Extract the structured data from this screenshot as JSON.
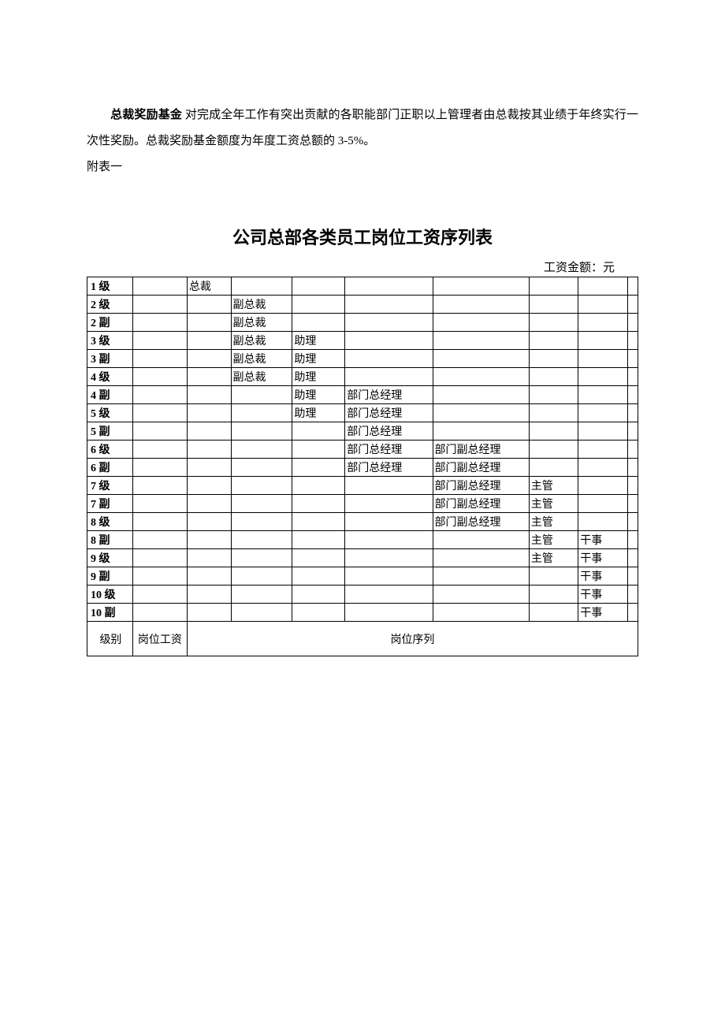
{
  "intro": {
    "bold_lead": "总裁奖励基金",
    "text_rest": " 对完成全年工作有突出贡献的各职能部门正职以上管理者由总裁按其业绩于年终实行一次性奖励。总裁奖励基金额度为年度工资总额的 3-5%。"
  },
  "appendix_label": "附表一",
  "title": "公司总部各类员工岗位工资序列表",
  "unit_label": "工资金额：元",
  "positions": {
    "president": "总裁",
    "vp": "副总裁",
    "assistant": "助理",
    "dept_gm": "部门总经理",
    "dept_dgm": "部门副总经理",
    "supervisor": "主管",
    "officer": "干事"
  },
  "footer": {
    "level": "级别",
    "salary": "岗位工资",
    "sequence": "岗位序列"
  },
  "table": {
    "rows": [
      {
        "level": "1 级",
        "c2": "president",
        "c3": "",
        "c4": "",
        "c5": "",
        "c6": "",
        "c7": "",
        "c8": ""
      },
      {
        "level": "2 级",
        "c2": "",
        "c3": "vp",
        "c4": "",
        "c5": "",
        "c6": "",
        "c7": "",
        "c8": ""
      },
      {
        "level": "2 副",
        "c2": "",
        "c3": "vp",
        "c4": "",
        "c5": "",
        "c6": "",
        "c7": "",
        "c8": ""
      },
      {
        "level": "3 级",
        "c2": "",
        "c3": "vp",
        "c4": "assistant",
        "c5": "",
        "c6": "",
        "c7": "",
        "c8": ""
      },
      {
        "level": "3 副",
        "c2": "",
        "c3": "vp",
        "c4": "assistant",
        "c5": "",
        "c6": "",
        "c7": "",
        "c8": ""
      },
      {
        "level": "4 级",
        "c2": "",
        "c3": "vp",
        "c4": "assistant",
        "c5": "",
        "c6": "",
        "c7": "",
        "c8": ""
      },
      {
        "level": "4 副",
        "c2": "",
        "c3": "",
        "c4": "assistant",
        "c5": "dept_gm",
        "c6": "",
        "c7": "",
        "c8": ""
      },
      {
        "level": "5 级",
        "c2": "",
        "c3": "",
        "c4": "assistant",
        "c5": "dept_gm",
        "c6": "",
        "c7": "",
        "c8": ""
      },
      {
        "level": "5 副",
        "c2": "",
        "c3": "",
        "c4": "",
        "c5": "dept_gm",
        "c6": "",
        "c7": "",
        "c8": ""
      },
      {
        "level": "6 级",
        "c2": "",
        "c3": "",
        "c4": "",
        "c5": "dept_gm",
        "c6": "dept_dgm",
        "c7": "",
        "c8": ""
      },
      {
        "level": "6 副",
        "c2": "",
        "c3": "",
        "c4": "",
        "c5": "dept_gm",
        "c6": "dept_dgm",
        "c7": "",
        "c8": ""
      },
      {
        "level": "7 级",
        "c2": "",
        "c3": "",
        "c4": "",
        "c5": "",
        "c6": "dept_dgm",
        "c7": "supervisor",
        "c8": ""
      },
      {
        "level": "7 副",
        "c2": "",
        "c3": "",
        "c4": "",
        "c5": "",
        "c6": "dept_dgm",
        "c7": "supervisor",
        "c8": ""
      },
      {
        "level": "8 级",
        "c2": "",
        "c3": "",
        "c4": "",
        "c5": "",
        "c6": "dept_dgm",
        "c7": "supervisor",
        "c8": ""
      },
      {
        "level": "8 副",
        "c2": "",
        "c3": "",
        "c4": "",
        "c5": "",
        "c6": "",
        "c7": "supervisor",
        "c8": "officer"
      },
      {
        "level": "9 级",
        "c2": "",
        "c3": "",
        "c4": "",
        "c5": "",
        "c6": "",
        "c7": "supervisor",
        "c8": "officer"
      },
      {
        "level": "9 副",
        "c2": "",
        "c3": "",
        "c4": "",
        "c5": "",
        "c6": "",
        "c7": "",
        "c8": "officer"
      },
      {
        "level": "10 级",
        "c2": "",
        "c3": "",
        "c4": "",
        "c5": "",
        "c6": "",
        "c7": "",
        "c8": "officer"
      },
      {
        "level": "10 副",
        "c2": "",
        "c3": "",
        "c4": "",
        "c5": "",
        "c6": "",
        "c7": "",
        "c8": "officer"
      }
    ]
  }
}
